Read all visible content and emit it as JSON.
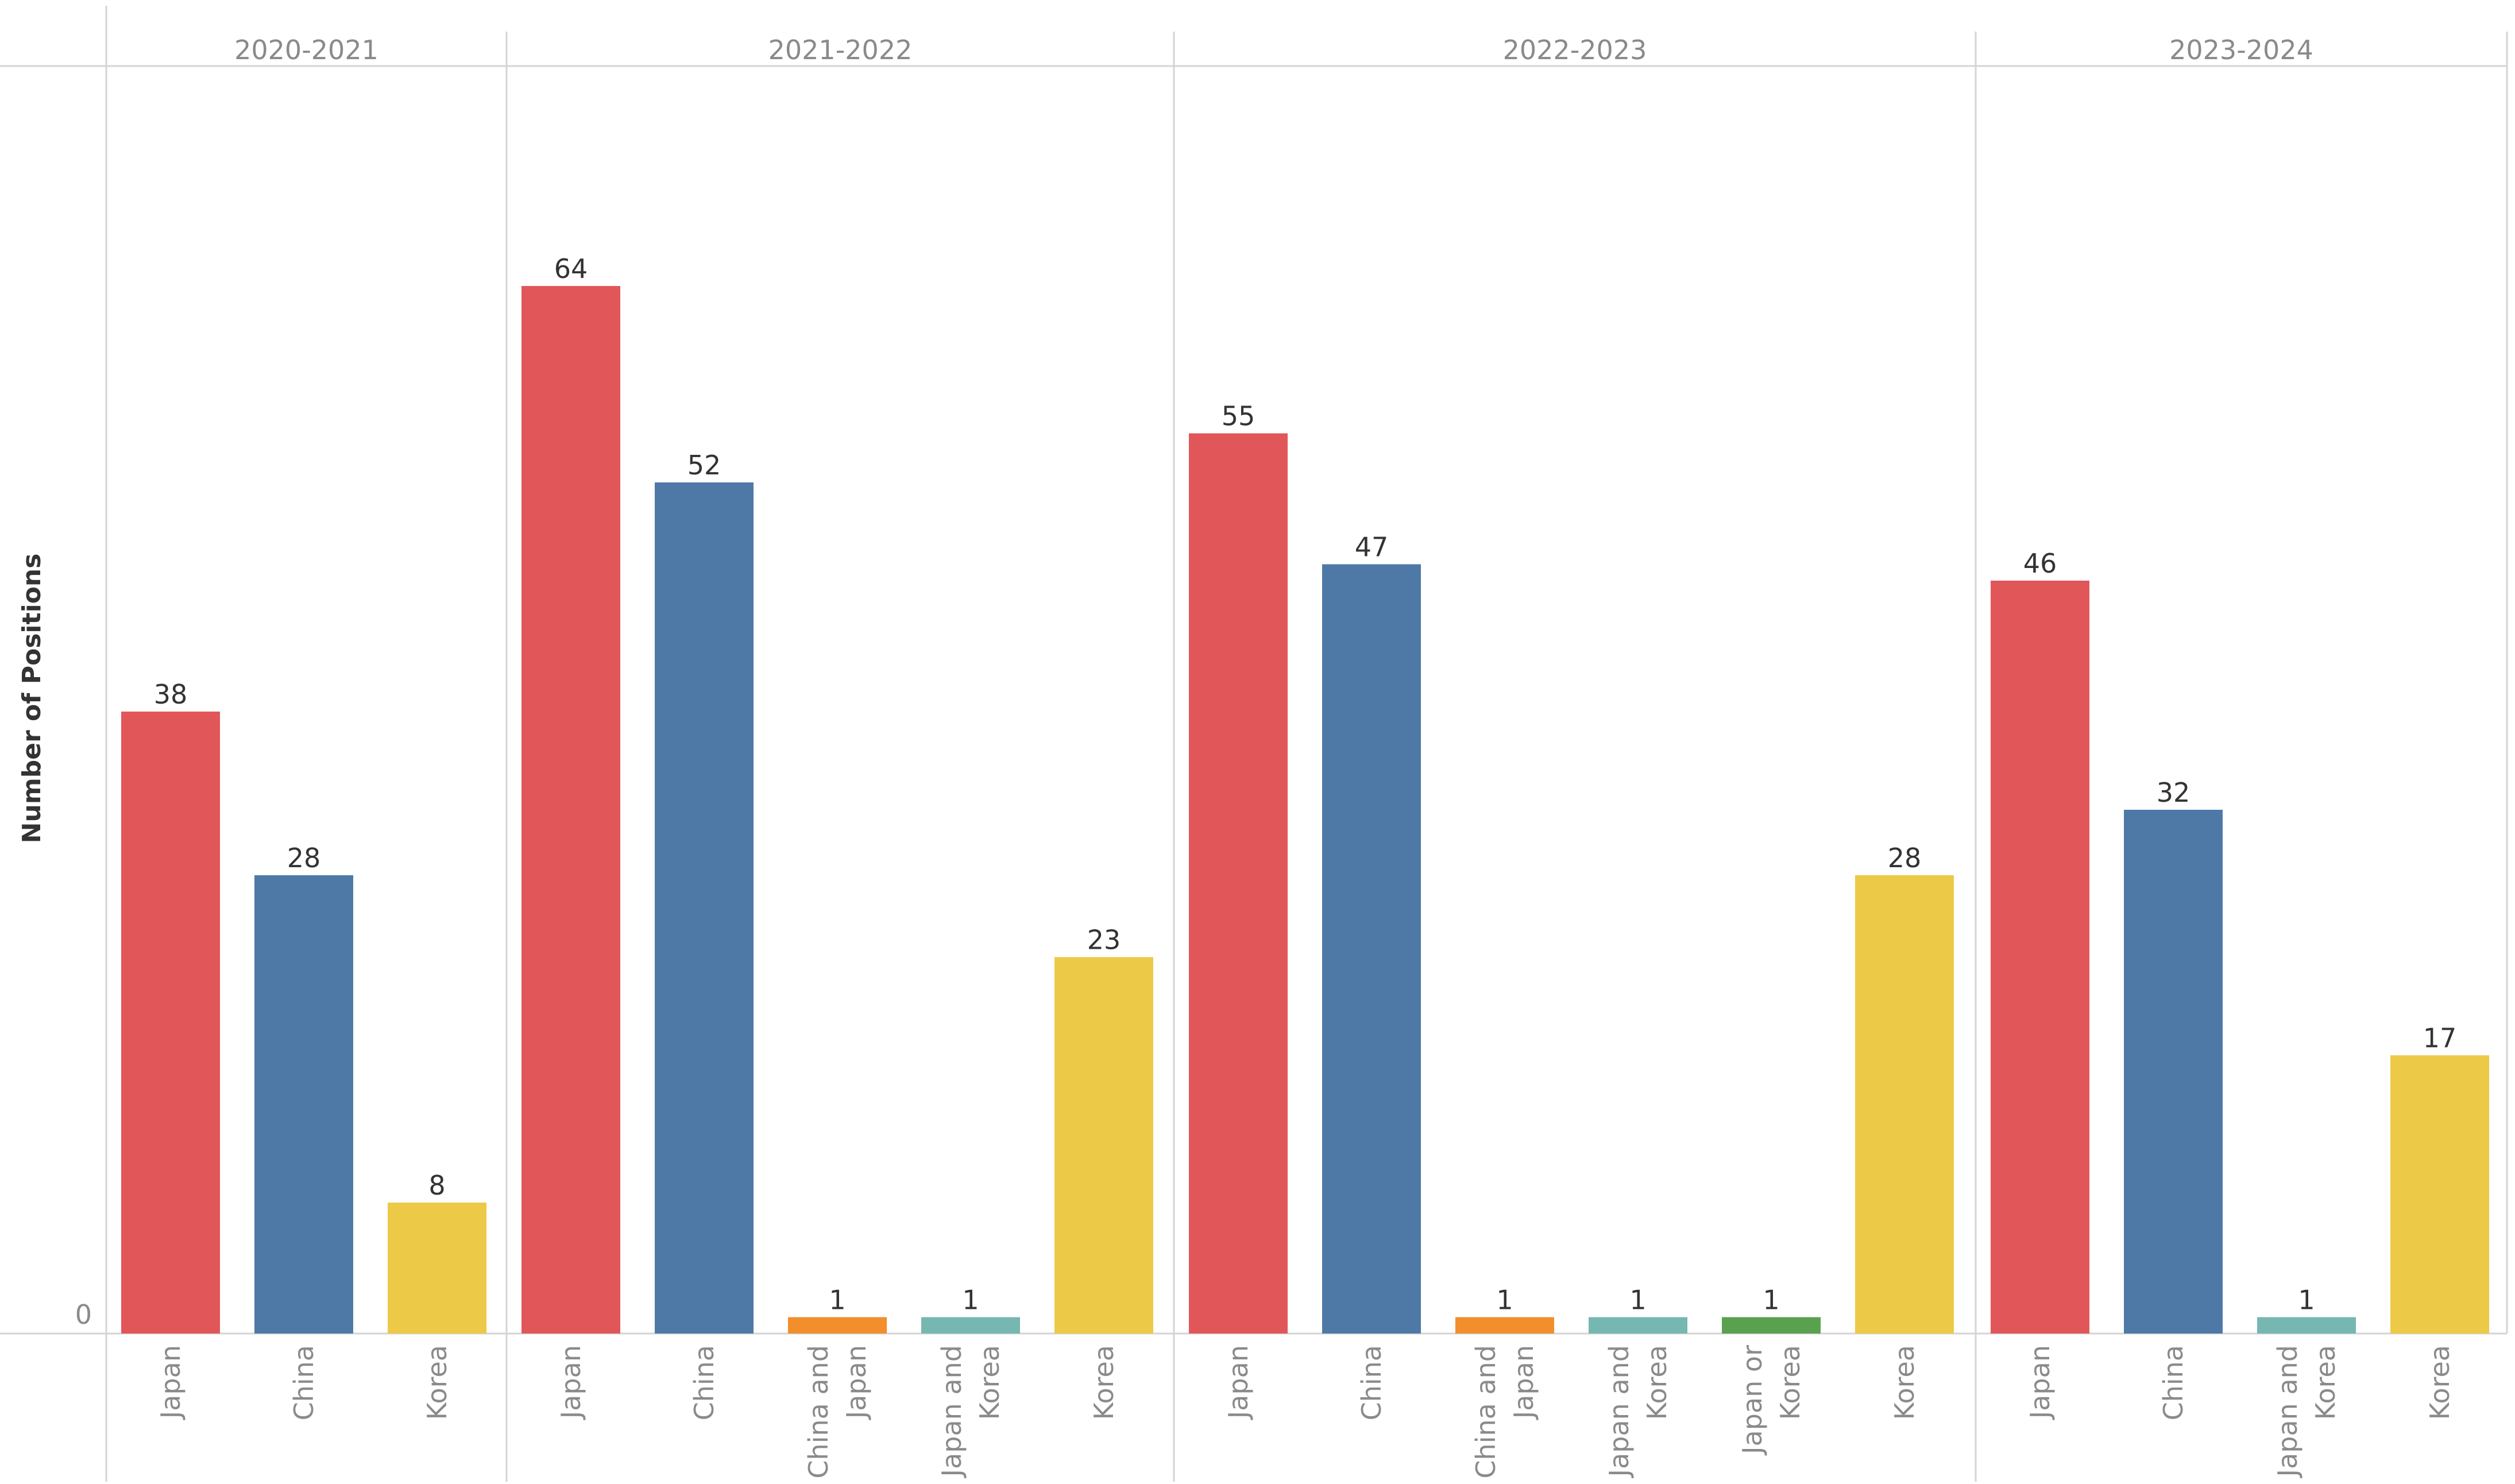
{
  "chart_data": {
    "type": "bar",
    "ylabel": "Number of Positions",
    "y_tick_labels": [
      "0"
    ],
    "ylim": [
      0,
      64
    ],
    "grid": false,
    "colors": {
      "Japan": "#e15759",
      "China": "#4e79a7",
      "Korea": "#edc948",
      "China and Japan": "#f28e2b",
      "Japan and Korea": "#76b7b2",
      "Japan or Korea": "#59a14f"
    },
    "panels": [
      {
        "label": "2020-2021",
        "bars": [
          {
            "category": "Japan",
            "label_lines": [
              "Japan"
            ],
            "value": 38
          },
          {
            "category": "China",
            "label_lines": [
              "China"
            ],
            "value": 28
          },
          {
            "category": "Korea",
            "label_lines": [
              "Korea"
            ],
            "value": 8
          }
        ]
      },
      {
        "label": "2021-2022",
        "bars": [
          {
            "category": "Japan",
            "label_lines": [
              "Japan"
            ],
            "value": 64
          },
          {
            "category": "China",
            "label_lines": [
              "China"
            ],
            "value": 52
          },
          {
            "category": "China and Japan",
            "label_lines": [
              "China and",
              "Japan"
            ],
            "value": 1
          },
          {
            "category": "Japan and Korea",
            "label_lines": [
              "Japan and",
              "Korea"
            ],
            "value": 1
          },
          {
            "category": "Korea",
            "label_lines": [
              "Korea"
            ],
            "value": 23
          }
        ]
      },
      {
        "label": "2022-2023",
        "bars": [
          {
            "category": "Japan",
            "label_lines": [
              "Japan"
            ],
            "value": 55
          },
          {
            "category": "China",
            "label_lines": [
              "China"
            ],
            "value": 47
          },
          {
            "category": "China and Japan",
            "label_lines": [
              "China and",
              "Japan"
            ],
            "value": 1
          },
          {
            "category": "Japan and Korea",
            "label_lines": [
              "Japan and",
              "Korea"
            ],
            "value": 1
          },
          {
            "category": "Japan or Korea",
            "label_lines": [
              "Japan or",
              "Korea"
            ],
            "value": 1
          },
          {
            "category": "Korea",
            "label_lines": [
              "Korea"
            ],
            "value": 28
          }
        ]
      },
      {
        "label": "2023-2024",
        "bars": [
          {
            "category": "Japan",
            "label_lines": [
              "Japan"
            ],
            "value": 46
          },
          {
            "category": "China",
            "label_lines": [
              "China"
            ],
            "value": 32
          },
          {
            "category": "Japan and Korea",
            "label_lines": [
              "Japan and",
              "Korea"
            ],
            "value": 1
          },
          {
            "category": "Korea",
            "label_lines": [
              "Korea"
            ],
            "value": 17
          }
        ]
      }
    ]
  }
}
